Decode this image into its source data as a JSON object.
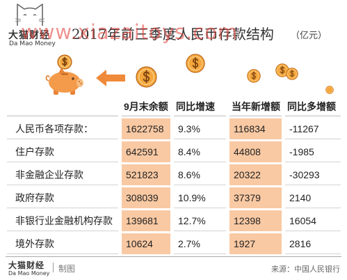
{
  "brand": {
    "name_cn": "大猫财经",
    "name_en": "Da Mao Money"
  },
  "watermark": "www.xiazaitoys.com",
  "chart_data": {
    "type": "table",
    "title": "2017年前三季度人民币存款结构",
    "unit": "（亿元）",
    "columns": [
      "9月末余额",
      "同比增速",
      "当年新增额",
      "同比多增额"
    ],
    "rows": [
      {
        "label": "人民币各项存款：",
        "balance": 1622758,
        "yoy_growth": "9.3%",
        "new_amount": 116834,
        "yoy_increase": -11267
      },
      {
        "label": "住户存款",
        "balance": 642591,
        "yoy_growth": "8.4%",
        "new_amount": 44808,
        "yoy_increase": -1985
      },
      {
        "label": "非金融企业存款",
        "balance": 521823,
        "yoy_growth": "8.6%",
        "new_amount": 20322,
        "yoy_increase": -30293
      },
      {
        "label": "政府存款",
        "balance": 308039,
        "yoy_growth": "10.9%",
        "new_amount": 37379,
        "yoy_increase": 2140
      },
      {
        "label": "非银行业金融机构存款",
        "balance": 139681,
        "yoy_growth": "12.7%",
        "new_amount": 12398,
        "yoy_increase": 16054
      },
      {
        "label": "境外存款",
        "balance": 10624,
        "yoy_growth": "2.7%",
        "new_amount": 1927,
        "yoy_increase": 2816
      }
    ]
  },
  "footer": {
    "brand_cn": "大猫财经",
    "brand_en": "Da Mao Money",
    "credit": "制图",
    "source": "来源：中国人民银行"
  },
  "icons": {
    "logo": "cat-logo-icon",
    "piggy": "piggy-bank-icon",
    "arrow": "arrow-left-icon",
    "coin": "coin-icon"
  },
  "colors": {
    "accent_column": "#f9c9a3",
    "piggy": "#f39b4b",
    "coin": "#f4a63c",
    "arrow": "#ef8a3a",
    "watermark": "#e23e37",
    "text": "#222222"
  }
}
